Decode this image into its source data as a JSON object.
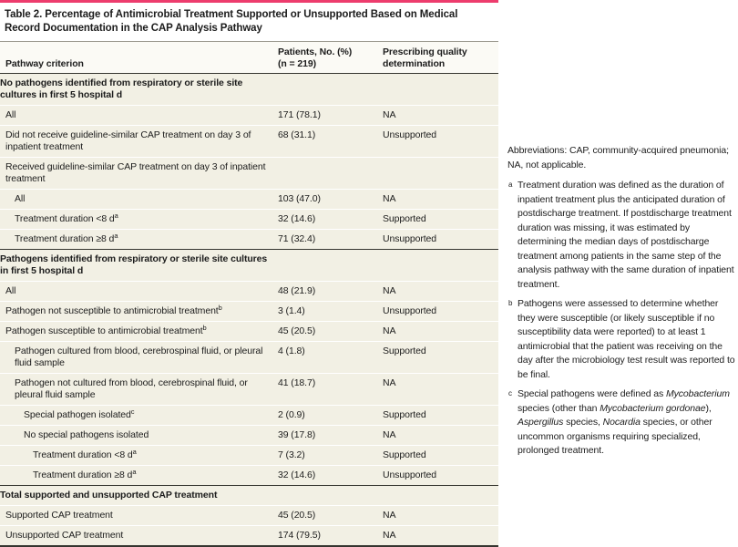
{
  "table": {
    "title": "Table 2. Percentage of Antimicrobial Treatment Supported or Unsupported Based on Medical Record Documentation in the CAP Analysis Pathway",
    "columns": [
      "Pathway criterion",
      "Patients, No. (%)\n(n = 219)",
      "Prescribing quality\ndetermination"
    ],
    "sections": [
      {
        "header": "No pathogens identified from respiratory or sterile site cultures in first 5 hospital d",
        "rows": [
          {
            "label": "All",
            "indent": 0,
            "patients": "171 (78.1)",
            "determination": "NA"
          },
          {
            "label": "Did not receive guideline-similar CAP treatment on day 3 of inpatient treatment",
            "indent": 0,
            "patients": "68 (31.1)",
            "determination": "Unsupported"
          },
          {
            "label": "Received guideline-similar CAP treatment on day 3 of inpatient treatment",
            "indent": 0,
            "patients": "",
            "determination": ""
          },
          {
            "label": "All",
            "indent": 1,
            "patients": "103 (47.0)",
            "determination": "NA"
          },
          {
            "label": "Treatment duration <8 d",
            "sup": "a",
            "indent": 1,
            "patients": "32 (14.6)",
            "determination": "Supported"
          },
          {
            "label": "Treatment duration ≥8 d",
            "sup": "a",
            "indent": 1,
            "patients": "71 (32.4)",
            "determination": "Unsupported"
          }
        ]
      },
      {
        "header": "Pathogens identified from respiratory or sterile site cultures in first 5 hospital d",
        "rows": [
          {
            "label": "All",
            "indent": 0,
            "patients": "48 (21.9)",
            "determination": "NA"
          },
          {
            "label": "Pathogen not susceptible to antimicrobial treatment",
            "sup": "b",
            "indent": 0,
            "patients": "3 (1.4)",
            "determination": "Unsupported"
          },
          {
            "label": "Pathogen susceptible to antimicrobial treatment",
            "sup": "b",
            "indent": 0,
            "patients": "45 (20.5)",
            "determination": "NA"
          },
          {
            "label": "Pathogen cultured from blood, cerebrospinal fluid, or pleural fluid sample",
            "indent": 1,
            "patients": "4 (1.8)",
            "determination": "Supported"
          },
          {
            "label": "Pathogen not cultured from blood, cerebrospinal fluid, or pleural fluid sample",
            "indent": 1,
            "patients": "41 (18.7)",
            "determination": "NA"
          },
          {
            "label": "Special pathogen isolated",
            "sup": "c",
            "indent": 2,
            "patients": "2 (0.9)",
            "determination": "Supported"
          },
          {
            "label": "No special pathogens isolated",
            "indent": 2,
            "patients": "39 (17.8)",
            "determination": "NA"
          },
          {
            "label": "Treatment duration <8 d",
            "sup": "a",
            "indent": 3,
            "patients": "7 (3.2)",
            "determination": "Supported"
          },
          {
            "label": "Treatment duration ≥8 d",
            "sup": "a",
            "indent": 3,
            "patients": "32 (14.6)",
            "determination": "Unsupported"
          }
        ]
      },
      {
        "header": "Total supported and unsupported CAP treatment",
        "rows": [
          {
            "label": "Supported CAP treatment",
            "indent": 0,
            "patients": "45 (20.5)",
            "determination": "NA"
          },
          {
            "label": "Unsupported CAP treatment",
            "indent": 0,
            "patients": "174 (79.5)",
            "determination": "NA"
          }
        ]
      }
    ]
  },
  "footnotes": {
    "abbreviations": "Abbreviations: CAP, community-acquired pneumonia; NA, not applicable.",
    "items": [
      {
        "marker": "a",
        "segments": [
          {
            "text": "Treatment duration was defined as the duration of inpatient treatment plus the anticipated duration of postdischarge treatment. If postdischarge treatment duration was missing, it was estimated by determining the median days of postdischarge treatment among patients in the same step of the analysis pathway with the same duration of inpatient treatment."
          }
        ]
      },
      {
        "marker": "b",
        "segments": [
          {
            "text": "Pathogens were assessed to determine whether they were susceptible (or likely susceptible if no susceptibility data were reported) to at least 1 antimicrobial that the patient was receiving on the day after the microbiology test result was reported to be final."
          }
        ]
      },
      {
        "marker": "c",
        "segments": [
          {
            "text": "Special pathogens were defined as "
          },
          {
            "text": "Mycobacterium",
            "italic": true
          },
          {
            "text": " species (other than "
          },
          {
            "text": "Mycobacterium gordonae",
            "italic": true
          },
          {
            "text": "), "
          },
          {
            "text": "Aspergillus",
            "italic": true
          },
          {
            "text": " species, "
          },
          {
            "text": "Nocardia",
            "italic": true
          },
          {
            "text": " species, or other uncommon organisms requiring specialized, prolonged treatment."
          }
        ]
      }
    ]
  },
  "colors": {
    "accent_rule": "#ed3c6d",
    "body_background": "#f2f0e4",
    "section_rule": "#35352f"
  }
}
